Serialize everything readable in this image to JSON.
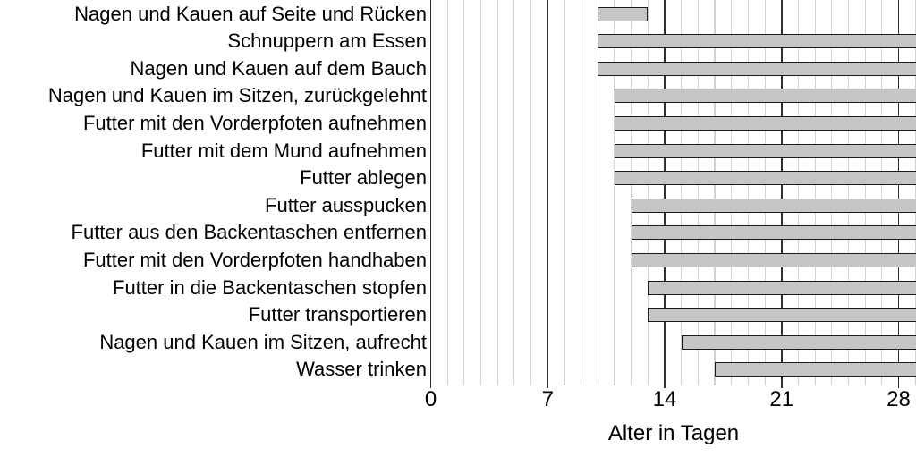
{
  "chart_data": {
    "type": "bar",
    "orientation": "horizontal-range",
    "title": "",
    "xlabel": "Alter in Tagen",
    "x_tick_labels": [
      "0",
      "7",
      "14",
      "21",
      "28"
    ],
    "x_ticks": [
      0,
      7,
      14,
      21,
      28
    ],
    "xlim": [
      0,
      29
    ],
    "grid": true,
    "minor_grid_interval_days": 1,
    "major_grid_interval_days": 7,
    "legend": false,
    "categories": [
      "Nagen und Kauen auf Seite und Rücken",
      "Schnuppern am Essen",
      "Nagen und Kauen auf dem Bauch",
      "Nagen und Kauen im Sitzen, zurückgelehnt",
      "Futter mit den Vorderpfoten aufnehmen",
      "Futter mit dem Mund aufnehmen",
      "Futter ablegen",
      "Futter ausspucken",
      "Futter aus den Backentaschen entfernen",
      "Futter mit den Vorderpfoten handhaben",
      "Futter in die Backentaschen stopfen",
      "Futter transportieren",
      "Nagen und Kauen im Sitzen, aufrecht",
      "Wasser trinken"
    ],
    "bars": [
      {
        "category": "Nagen und Kauen auf Seite und Rücken",
        "start_day": 10,
        "end_day": 13,
        "clipped_at_right": false
      },
      {
        "category": "Schnuppern am Essen",
        "start_day": 10,
        "end_day": null,
        "clipped_at_right": true
      },
      {
        "category": "Nagen und Kauen auf dem Bauch",
        "start_day": 10,
        "end_day": null,
        "clipped_at_right": true
      },
      {
        "category": "Nagen und Kauen im Sitzen, zurückgelehnt",
        "start_day": 11,
        "end_day": null,
        "clipped_at_right": true
      },
      {
        "category": "Futter mit den Vorderpfoten aufnehmen",
        "start_day": 11,
        "end_day": null,
        "clipped_at_right": true
      },
      {
        "category": "Futter mit dem Mund aufnehmen",
        "start_day": 11,
        "end_day": null,
        "clipped_at_right": true
      },
      {
        "category": "Futter ablegen",
        "start_day": 11,
        "end_day": null,
        "clipped_at_right": true
      },
      {
        "category": "Futter ausspucken",
        "start_day": 12,
        "end_day": null,
        "clipped_at_right": true
      },
      {
        "category": "Futter aus den Backentaschen entfernen",
        "start_day": 12,
        "end_day": null,
        "clipped_at_right": true
      },
      {
        "category": "Futter mit den Vorderpfoten handhaben",
        "start_day": 12,
        "end_day": null,
        "clipped_at_right": true
      },
      {
        "category": "Futter in die Backentaschen stopfen",
        "start_day": 13,
        "end_day": null,
        "clipped_at_right": true
      },
      {
        "category": "Futter transportieren",
        "start_day": 13,
        "end_day": null,
        "clipped_at_right": true
      },
      {
        "category": "Nagen und Kauen im Sitzen, aufrecht",
        "start_day": 15,
        "end_day": null,
        "clipped_at_right": true
      },
      {
        "category": "Wasser trinken",
        "start_day": 17,
        "end_day": null,
        "clipped_at_right": true
      }
    ]
  },
  "colors": {
    "background": "#ffffff",
    "bar_fill": "#c6c6c6",
    "bar_border": "#1a1a1a",
    "grid_minor": "#d2d2d2",
    "grid_major": "#303030",
    "text": "#000000"
  }
}
